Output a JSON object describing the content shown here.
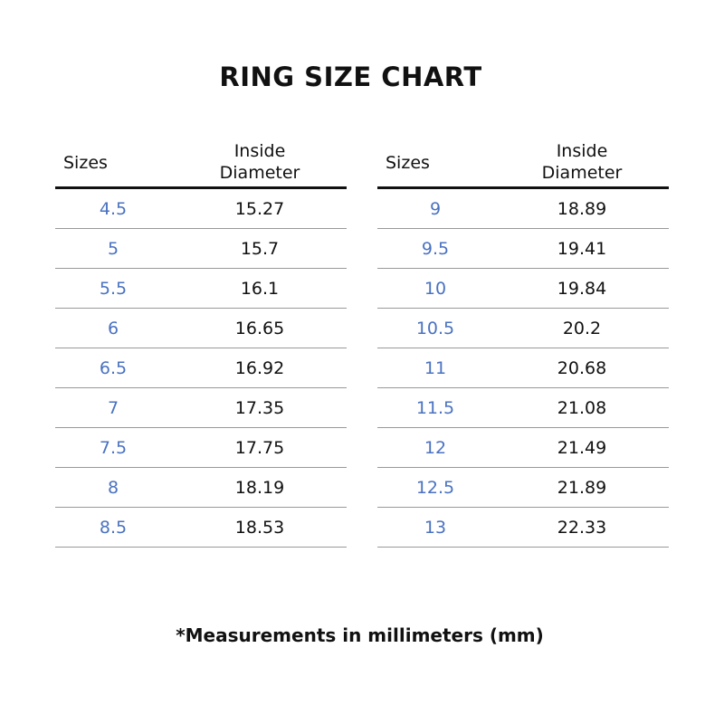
{
  "chart_data": {
    "type": "table",
    "title": "RING SIZE CHART",
    "columns": [
      "Sizes",
      "Inside Diameter"
    ],
    "rows": [
      [
        "4.5",
        "15.27"
      ],
      [
        "5",
        "15.7"
      ],
      [
        "5.5",
        "16.1"
      ],
      [
        "6",
        "16.65"
      ],
      [
        "6.5",
        "16.92"
      ],
      [
        "7",
        "17.35"
      ],
      [
        "7.5",
        "17.75"
      ],
      [
        "8",
        "18.19"
      ],
      [
        "8.5",
        "18.53"
      ],
      [
        "9",
        "18.89"
      ],
      [
        "9.5",
        "19.41"
      ],
      [
        "10",
        "19.84"
      ],
      [
        "10.5",
        "20.2"
      ],
      [
        "11",
        "20.68"
      ],
      [
        "11.5",
        "21.08"
      ],
      [
        "12",
        "21.49"
      ],
      [
        "12.5",
        "21.89"
      ],
      [
        "13",
        "22.33"
      ]
    ],
    "footnote": "*Measurements in millimeters (mm)",
    "colors": {
      "size_text": "#4a72c0",
      "text": "#111111",
      "rule": "#999999"
    }
  }
}
